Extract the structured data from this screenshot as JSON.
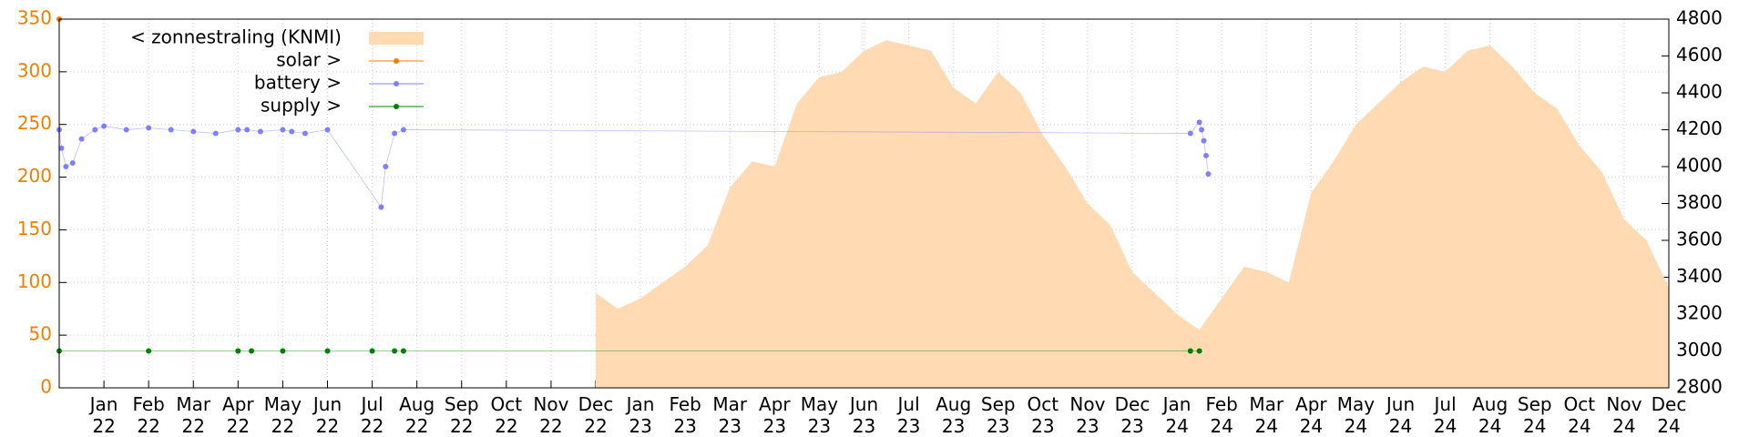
{
  "chart_data": {
    "type": "line",
    "grid": true,
    "legend": "top-left",
    "xlim": [
      0,
      36
    ],
    "ylim": [
      0,
      350
    ],
    "yticks": [
      0,
      50,
      100,
      150,
      200,
      250,
      300,
      350
    ],
    "y2lim": [
      2800,
      4800
    ],
    "y2ticks": [
      2800,
      3000,
      3200,
      3400,
      3600,
      3800,
      4000,
      4200,
      4400,
      4600,
      4800
    ],
    "xticks": [
      {
        "value": 1,
        "label": "Jan 22"
      },
      {
        "value": 2,
        "label": "Feb 22"
      },
      {
        "value": 3,
        "label": "Mar 22"
      },
      {
        "value": 4,
        "label": "Apr 22"
      },
      {
        "value": 5,
        "label": "May 22"
      },
      {
        "value": 6,
        "label": "Jun 22"
      },
      {
        "value": 7,
        "label": "Jul 22"
      },
      {
        "value": 8,
        "label": "Aug 22"
      },
      {
        "value": 9,
        "label": "Sep 22"
      },
      {
        "value": 10,
        "label": "Oct 22"
      },
      {
        "value": 11,
        "label": "Nov 22"
      },
      {
        "value": 12,
        "label": "Dec 22"
      },
      {
        "value": 13,
        "label": "Jan 23"
      },
      {
        "value": 14,
        "label": "Feb 23"
      },
      {
        "value": 15,
        "label": "Mar 23"
      },
      {
        "value": 16,
        "label": "Apr 23"
      },
      {
        "value": 17,
        "label": "May 23"
      },
      {
        "value": 18,
        "label": "Jun 23"
      },
      {
        "value": 19,
        "label": "Jul 23"
      },
      {
        "value": 20,
        "label": "Aug 23"
      },
      {
        "value": 21,
        "label": "Sep 23"
      },
      {
        "value": 22,
        "label": "Oct 23"
      },
      {
        "value": 23,
        "label": "Nov 23"
      },
      {
        "value": 24,
        "label": "Dec 23"
      },
      {
        "value": 25,
        "label": "Jan 24"
      },
      {
        "value": 26,
        "label": "Feb 24"
      },
      {
        "value": 27,
        "label": "Mar 24"
      },
      {
        "value": 28,
        "label": "Apr 24"
      },
      {
        "value": 29,
        "label": "May 24"
      },
      {
        "value": 30,
        "label": "Jun 24"
      },
      {
        "value": 31,
        "label": "Jul 24"
      },
      {
        "value": 32,
        "label": "Aug 24"
      },
      {
        "value": 33,
        "label": "Sep 24"
      },
      {
        "value": 34,
        "label": "Oct 24"
      },
      {
        "value": 35,
        "label": "Nov 24"
      },
      {
        "value": 36,
        "label": "Dec 24"
      }
    ],
    "series": [
      {
        "name": "< zonnestraling (KNMI)",
        "color": "#ffdab3",
        "style": "area",
        "axis": "y",
        "x": [
          12,
          12.5,
          13,
          13.5,
          14,
          14.5,
          15,
          15.5,
          16,
          16.5,
          17,
          17.5,
          18,
          18.5,
          19,
          19.5,
          20,
          20.5,
          21,
          21.5,
          22,
          22.5,
          23,
          23.5,
          24,
          24.5,
          25,
          25.5,
          26,
          26.5,
          27,
          27.5,
          28,
          28.5,
          29,
          29.5,
          30,
          30.5,
          31,
          31.5,
          32,
          32.5,
          33,
          33.5,
          34,
          34.5,
          35,
          35.5,
          36
        ],
        "values": [
          90,
          75,
          85,
          100,
          115,
          135,
          190,
          215,
          210,
          270,
          295,
          300,
          320,
          330,
          325,
          320,
          285,
          270,
          300,
          280,
          240,
          210,
          175,
          155,
          110,
          90,
          70,
          55,
          85,
          115,
          110,
          100,
          185,
          215,
          250,
          270,
          290,
          305,
          300,
          320,
          325,
          305,
          280,
          265,
          230,
          205,
          160,
          140,
          95
        ]
      },
      {
        "name": "solar >",
        "color": "#f07f00",
        "style": "line",
        "axis": "y2",
        "x": [
          0
        ],
        "values": [
          4800
        ]
      },
      {
        "name": "battery >",
        "color": "#8080ff",
        "style": "line",
        "axis": "y2",
        "x": [
          0,
          0.05,
          0.15,
          0.3,
          0.5,
          0.8,
          1,
          1.5,
          2,
          2.5,
          3,
          3.5,
          4,
          4.2,
          4.5,
          5,
          5.2,
          5.5,
          6,
          7.2,
          7.3,
          7.5,
          7.7,
          25.3,
          25.5,
          25.55,
          25.6,
          25.65,
          25.7
        ],
        "values": [
          4200,
          4100,
          4000,
          4020,
          4150,
          4200,
          4220,
          4200,
          4210,
          4200,
          4190,
          4180,
          4200,
          4200,
          4190,
          4200,
          4190,
          4180,
          4200,
          3780,
          4000,
          4180,
          4200,
          4180,
          4240,
          4200,
          4140,
          4060,
          3960
        ]
      },
      {
        "name": "supply >",
        "color": "#008000",
        "style": "line",
        "axis": "y2",
        "x": [
          0,
          2,
          4,
          4.3,
          5,
          6,
          7,
          7.5,
          7.7,
          25.3,
          25.5
        ],
        "values": [
          3000,
          3000,
          3000,
          3000,
          3000,
          3000,
          3000,
          3000,
          3000,
          3000,
          3000
        ]
      }
    ]
  }
}
